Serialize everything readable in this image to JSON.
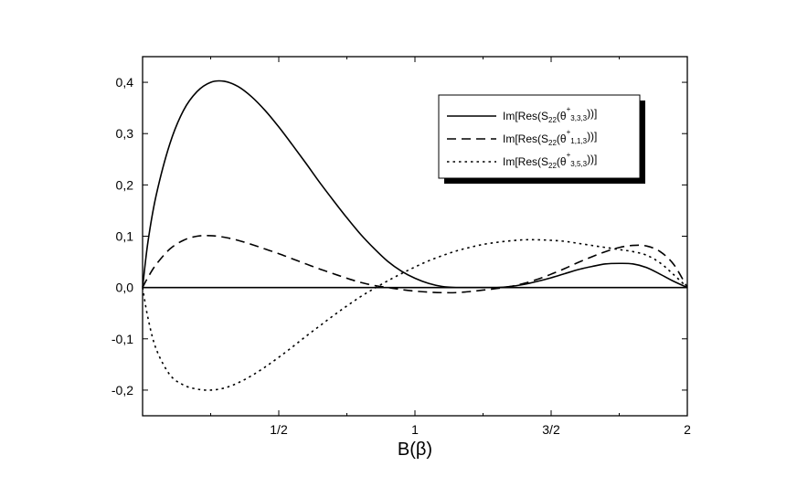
{
  "chart_data": {
    "type": "line",
    "title": "",
    "xlabel": "B(β)",
    "ylabel": "",
    "xlim": [
      0,
      2
    ],
    "ylim": [
      -0.25,
      0.45
    ],
    "x_ticks": [
      {
        "value": 0.5,
        "label": "1/2"
      },
      {
        "value": 1.0,
        "label": "1"
      },
      {
        "value": 1.5,
        "label": "3/2"
      },
      {
        "value": 2.0,
        "label": "2"
      }
    ],
    "x_minor_ticks": [
      0.25,
      0.75,
      1.25,
      1.75
    ],
    "y_ticks": [
      {
        "value": 0.4,
        "label": "0,4"
      },
      {
        "value": 0.3,
        "label": "0,3"
      },
      {
        "value": 0.2,
        "label": "0,2"
      },
      {
        "value": 0.1,
        "label": "0,1"
      },
      {
        "value": 0.0,
        "label": "0,0"
      },
      {
        "value": -0.1,
        "label": "-0,1"
      },
      {
        "value": -0.2,
        "label": "-0,2"
      }
    ],
    "grid": false,
    "zero_line": true,
    "legend_position": "top-right",
    "series": [
      {
        "name": "Im[Res(S22(θ⁺3,3,3))]",
        "legend": {
          "pre": "Im[Res(S",
          "s1": "22",
          "mid": "(θ",
          "sup": "+",
          "s2": "3,3,3",
          "post": "))]"
        },
        "style": "solid",
        "x": [
          0,
          0.02,
          0.05,
          0.1,
          0.15,
          0.2,
          0.25,
          0.3,
          0.35,
          0.4,
          0.45,
          0.5,
          0.55,
          0.6,
          0.65,
          0.7,
          0.75,
          0.8,
          0.85,
          0.9,
          0.95,
          1.0,
          1.05,
          1.1,
          1.15,
          1.2,
          1.25,
          1.3,
          1.35,
          1.4,
          1.45,
          1.5,
          1.55,
          1.6,
          1.65,
          1.7,
          1.75,
          1.8,
          1.85,
          1.9,
          1.95,
          2.0
        ],
        "y": [
          0,
          0.09,
          0.18,
          0.28,
          0.345,
          0.382,
          0.4,
          0.402,
          0.392,
          0.372,
          0.345,
          0.313,
          0.278,
          0.242,
          0.205,
          0.17,
          0.136,
          0.104,
          0.076,
          0.051,
          0.032,
          0.018,
          0.008,
          0.002,
          0.0,
          0.0,
          0.0,
          0.0,
          0.002,
          0.006,
          0.012,
          0.019,
          0.027,
          0.035,
          0.041,
          0.046,
          0.047,
          0.046,
          0.039,
          0.026,
          0.012,
          0
        ]
      },
      {
        "name": "Im[Res(S22(θ⁺1,1,3))]",
        "legend": {
          "pre": "Im[Res(S",
          "s1": "22",
          "mid": "(θ",
          "sup": "+",
          "s2": "1,1,3",
          "post": "))]"
        },
        "style": "dashed",
        "x": [
          0,
          0.02,
          0.05,
          0.1,
          0.15,
          0.2,
          0.25,
          0.3,
          0.35,
          0.4,
          0.45,
          0.5,
          0.55,
          0.6,
          0.65,
          0.7,
          0.75,
          0.8,
          0.85,
          0.9,
          0.95,
          1.0,
          1.05,
          1.1,
          1.15,
          1.2,
          1.25,
          1.3,
          1.35,
          1.4,
          1.45,
          1.5,
          1.55,
          1.6,
          1.65,
          1.7,
          1.75,
          1.8,
          1.85,
          1.9,
          1.95,
          2.0
        ],
        "y": [
          0,
          0.02,
          0.045,
          0.075,
          0.092,
          0.1,
          0.101,
          0.098,
          0.092,
          0.084,
          0.075,
          0.066,
          0.056,
          0.046,
          0.036,
          0.027,
          0.018,
          0.01,
          0.004,
          0.0,
          -0.004,
          -0.007,
          -0.009,
          -0.01,
          -0.01,
          -0.008,
          -0.005,
          -0.002,
          0.002,
          0.008,
          0.016,
          0.026,
          0.037,
          0.049,
          0.06,
          0.07,
          0.078,
          0.082,
          0.081,
          0.07,
          0.045,
          0
        ]
      },
      {
        "name": "Im[Res(S22(θ⁺3,5,3))]",
        "legend": {
          "pre": "Im[Res(S",
          "s1": "22",
          "mid": "(θ",
          "sup": "+",
          "s2": "3,5,3",
          "post": "))]"
        },
        "style": "dotted",
        "x": [
          0,
          0.02,
          0.05,
          0.1,
          0.15,
          0.2,
          0.25,
          0.3,
          0.35,
          0.4,
          0.45,
          0.5,
          0.55,
          0.6,
          0.65,
          0.7,
          0.75,
          0.8,
          0.85,
          0.9,
          0.95,
          1.0,
          1.05,
          1.1,
          1.15,
          1.2,
          1.25,
          1.3,
          1.35,
          1.4,
          1.45,
          1.5,
          1.55,
          1.6,
          1.65,
          1.7,
          1.75,
          1.8,
          1.85,
          1.9,
          1.95,
          2.0
        ],
        "y": [
          0,
          -0.06,
          -0.12,
          -0.17,
          -0.19,
          -0.198,
          -0.2,
          -0.196,
          -0.186,
          -0.172,
          -0.155,
          -0.136,
          -0.116,
          -0.095,
          -0.075,
          -0.055,
          -0.036,
          -0.018,
          -0.002,
          0.013,
          0.027,
          0.04,
          0.052,
          0.062,
          0.071,
          0.078,
          0.084,
          0.088,
          0.091,
          0.093,
          0.093,
          0.092,
          0.09,
          0.086,
          0.082,
          0.078,
          0.074,
          0.07,
          0.063,
          0.048,
          0.025,
          0
        ]
      }
    ]
  }
}
